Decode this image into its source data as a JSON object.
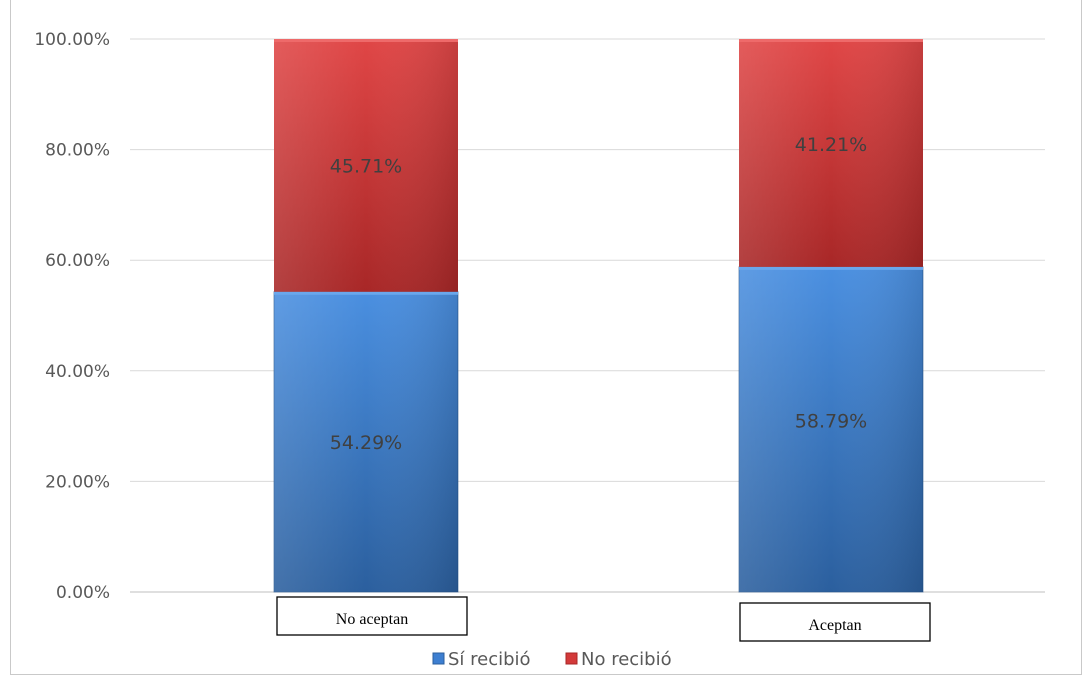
{
  "chart_data": {
    "type": "bar",
    "stacked": true,
    "categories": [
      "No aceptan",
      "Aceptan"
    ],
    "series": [
      {
        "name": "Sí recibió",
        "values": [
          54.29,
          58.79
        ],
        "labels": [
          "54.29%",
          "58.79%"
        ],
        "color": "#3d7fd1"
      },
      {
        "name": "No recibió",
        "values": [
          45.71,
          41.21
        ],
        "labels": [
          "45.71%",
          "41.21%"
        ],
        "color": "#d33a3a"
      }
    ],
    "ylim": [
      0,
      100
    ],
    "yticks": [
      "0.00%",
      "20.00%",
      "40.00%",
      "60.00%",
      "80.00%",
      "100.00%"
    ],
    "grid": true,
    "legend": "bottom"
  }
}
